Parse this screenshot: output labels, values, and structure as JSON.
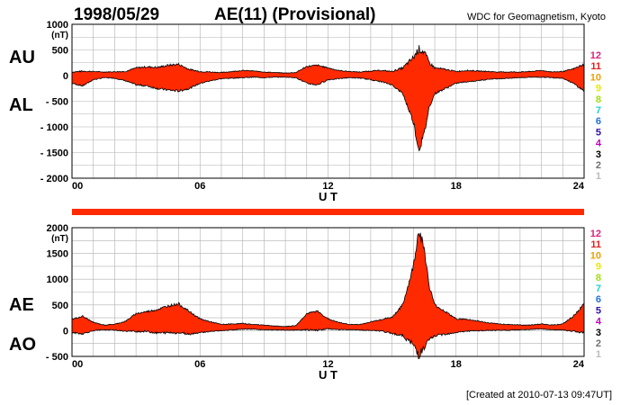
{
  "header": {
    "date": "1998/05/29",
    "title": "AE(11) (Provisional)",
    "source": "WDC for Geomagnetism, Kyoto"
  },
  "footer": {
    "created": "[Created at 2010-07-13 09:47UT]"
  },
  "station_scale": {
    "labels": [
      "12",
      "11",
      "10",
      "9",
      "8",
      "7",
      "6",
      "5",
      "4",
      "3",
      "2",
      "1"
    ],
    "colors": [
      "#e0207a",
      "#e02020",
      "#f0a000",
      "#e8e800",
      "#a0e000",
      "#20d0d0",
      "#2070e0",
      "#3010b0",
      "#c000c0",
      "#000000",
      "#707070",
      "#bbbbbb"
    ]
  },
  "colors": {
    "fill": "#ff2a00",
    "trace": "#000000",
    "grid": "#b0b0b0",
    "coverage_bar": "#ff2a00"
  },
  "chart_data": [
    {
      "type": "area",
      "name": "AU/AL",
      "upper_label": "AU",
      "lower_label": "AL",
      "unit": "(nT)",
      "xlabel": "U T",
      "xlim": [
        0,
        24
      ],
      "ylim": [
        -2000,
        1000
      ],
      "x_ticks": [
        "00",
        "06",
        "12",
        "18",
        "24"
      ],
      "y_ticks": [
        "1000",
        "500",
        "0",
        "- 500",
        "- 1000",
        "- 1500",
        "- 2000"
      ],
      "grid": true,
      "hours": [
        0,
        0.5,
        1,
        1.5,
        2,
        2.5,
        3,
        3.5,
        4,
        4.5,
        5,
        5.5,
        6,
        6.5,
        7,
        7.5,
        8,
        8.5,
        9,
        9.5,
        10,
        10.5,
        11,
        11.5,
        12,
        12.5,
        13,
        13.5,
        14,
        14.5,
        15,
        15.5,
        16,
        16.25,
        16.5,
        16.75,
        17,
        17.5,
        18,
        18.5,
        19,
        19.5,
        20,
        20.5,
        21,
        21.5,
        22,
        22.5,
        23,
        23.5,
        24
      ],
      "au": [
        70,
        85,
        80,
        70,
        75,
        80,
        150,
        170,
        160,
        200,
        220,
        120,
        80,
        70,
        60,
        80,
        100,
        90,
        70,
        60,
        50,
        60,
        180,
        200,
        150,
        100,
        80,
        70,
        90,
        100,
        80,
        150,
        350,
        520,
        460,
        250,
        150,
        120,
        80,
        100,
        90,
        80,
        70,
        70,
        70,
        80,
        100,
        70,
        80,
        130,
        220
      ],
      "al": [
        -150,
        -200,
        -80,
        -40,
        -50,
        -100,
        -180,
        -200,
        -250,
        -280,
        -300,
        -250,
        -150,
        -100,
        -60,
        -50,
        -40,
        -30,
        -40,
        -30,
        -30,
        -40,
        -150,
        -180,
        -80,
        -60,
        -40,
        -50,
        -80,
        -120,
        -180,
        -350,
        -900,
        -1450,
        -1150,
        -600,
        -350,
        -250,
        -150,
        -120,
        -100,
        -70,
        -60,
        -50,
        -40,
        -30,
        -30,
        -40,
        -50,
        -150,
        -300
      ]
    },
    {
      "type": "area",
      "name": "AE/AO",
      "upper_label": "AE",
      "lower_label": "AO",
      "unit": "(nT)",
      "xlabel": "U T",
      "xlim": [
        0,
        24
      ],
      "ylim": [
        -500,
        2000
      ],
      "x_ticks": [
        "00",
        "06",
        "12",
        "18",
        "24"
      ],
      "y_ticks": [
        "2000",
        "1500",
        "1000",
        "500",
        "0",
        "- 500"
      ],
      "grid": true,
      "hours": [
        0,
        0.5,
        1,
        1.5,
        2,
        2.5,
        3,
        3.5,
        4,
        4.5,
        5,
        5.5,
        6,
        6.5,
        7,
        7.5,
        8,
        8.5,
        9,
        9.5,
        10,
        10.5,
        11,
        11.5,
        12,
        12.5,
        13,
        13.5,
        14,
        14.5,
        15,
        15.5,
        16,
        16.25,
        16.5,
        16.75,
        17,
        17.5,
        18,
        18.5,
        19,
        19.5,
        20,
        20.5,
        21,
        21.5,
        22,
        22.5,
        23,
        23.5,
        24
      ],
      "ae": [
        220,
        280,
        160,
        110,
        125,
        180,
        330,
        370,
        410,
        480,
        520,
        370,
        230,
        170,
        120,
        130,
        140,
        120,
        110,
        90,
        80,
        100,
        330,
        380,
        230,
        160,
        120,
        120,
        170,
        220,
        260,
        500,
        1250,
        1970,
        1610,
        850,
        500,
        370,
        230,
        220,
        190,
        150,
        130,
        120,
        110,
        110,
        130,
        110,
        130,
        280,
        520
      ],
      "ao": [
        -40,
        -60,
        0,
        15,
        12,
        -10,
        -15,
        -15,
        -45,
        -40,
        -40,
        -65,
        -35,
        -15,
        0,
        15,
        30,
        30,
        15,
        15,
        10,
        10,
        15,
        10,
        35,
        20,
        20,
        10,
        5,
        -10,
        -50,
        -100,
        -275,
        -465,
        -345,
        -175,
        -100,
        -65,
        -35,
        -10,
        -5,
        5,
        5,
        10,
        15,
        25,
        35,
        15,
        15,
        -10,
        -40
      ]
    }
  ]
}
